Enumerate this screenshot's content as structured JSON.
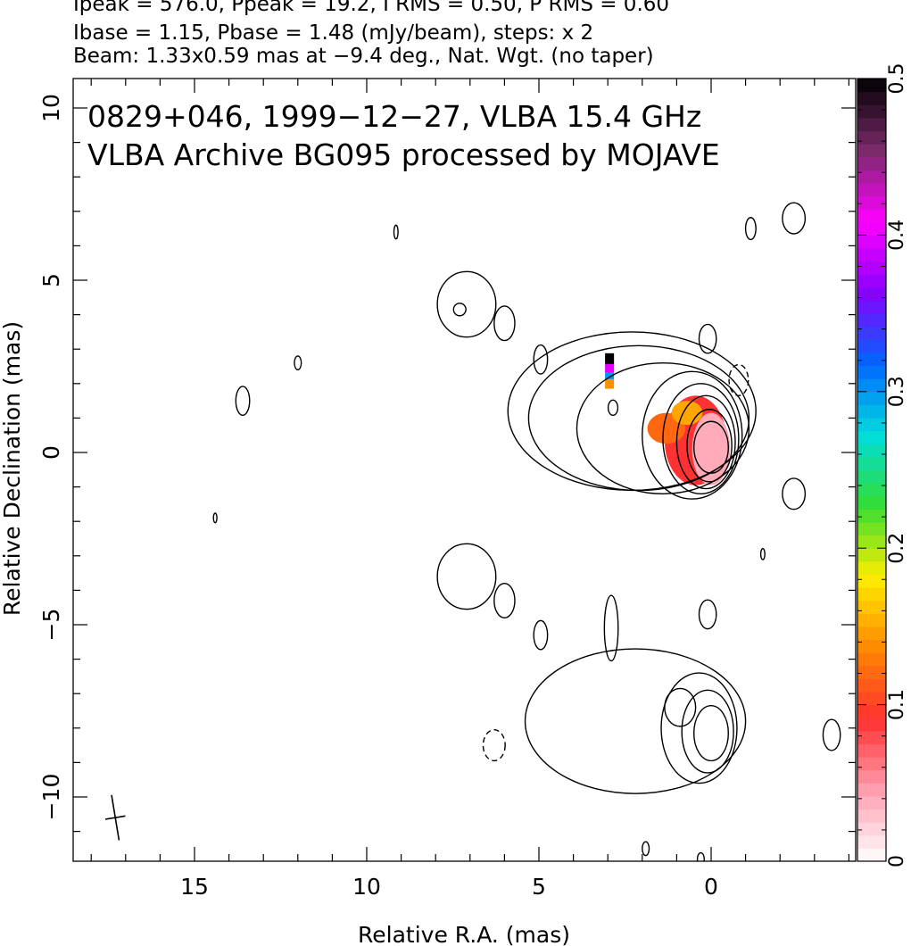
{
  "header": {
    "line1": "Ipeak = 576.0, Ppeak = 19.2, I RMS = 0.50, P RMS = 0.60",
    "line2": "Ibase = 1.15, Pbase = 1.48 (mJy/beam), steps: x 2",
    "line3": "Beam: 1.33x0.59 mas at −9.4 deg., Nat. Wgt. (no taper)"
  },
  "chart_data": {
    "type": "heatmap",
    "title_line1": "0829+046, 1999−12−27, VLBA 15.4 GHz",
    "title_line2": "VLBA Archive BG095 processed by MOJAVE",
    "xlabel": "Relative R.A. (mas)",
    "ylabel": "Relative Declination (mas)",
    "xlim": [
      18.5,
      -4.2
    ],
    "ylim": [
      -11.8,
      10.9
    ],
    "x_ticks": [
      15,
      10,
      5,
      0
    ],
    "x_tick_labels": [
      "15",
      "10",
      "5",
      "0"
    ],
    "y_ticks": [
      10,
      5,
      0,
      -5,
      -10
    ],
    "y_tick_labels": [
      "10",
      "5",
      "0",
      "−5",
      "−10"
    ],
    "colorbar": {
      "range": [
        0,
        0.5
      ],
      "ticks": [
        0,
        0.1,
        0.2,
        0.3,
        0.4,
        0.5
      ],
      "tick_labels": [
        "0",
        "0.1",
        "0.2",
        "0.3",
        "0.4",
        "0.5"
      ],
      "colors": [
        "#ffffff",
        "#ff9fb0",
        "#ff3030",
        "#ff8800",
        "#ffee00",
        "#33dd33",
        "#00dddd",
        "#0066ff",
        "#8800ff",
        "#ff00ff",
        "#7a2a6a",
        "#000000"
      ]
    },
    "total_intensity_contours": [
      {
        "x": 0.0,
        "y": 0.15,
        "rx": 0.5,
        "ry": 0.75
      },
      {
        "x": 0.05,
        "y": 0.2,
        "rx": 0.65,
        "ry": 1.05
      },
      {
        "x": 0.15,
        "y": 0.3,
        "rx": 0.85,
        "ry": 1.35
      },
      {
        "x": 0.3,
        "y": 0.4,
        "rx": 1.1,
        "ry": 1.6
      },
      {
        "x": 0.55,
        "y": 0.5,
        "rx": 1.45,
        "ry": 1.85
      },
      {
        "x": 1.4,
        "y": 0.7,
        "rx": 2.5,
        "ry": 1.9
      },
      {
        "x": 2.1,
        "y": 1.0,
        "rx": 3.2,
        "ry": 2.1
      },
      {
        "x": 2.3,
        "y": 1.2,
        "rx": 3.6,
        "ry": 2.3
      },
      {
        "x": 2.85,
        "y": 1.3,
        "rx": 0.14,
        "ry": 0.22
      },
      {
        "x": 7.1,
        "y": 4.3,
        "rx": 0.85,
        "ry": 0.95
      },
      {
        "x": 7.3,
        "y": 4.15,
        "rx": 0.18,
        "ry": 0.18
      },
      {
        "x": 6.0,
        "y": 3.75,
        "rx": 0.3,
        "ry": 0.5
      },
      {
        "x": 4.95,
        "y": 2.7,
        "rx": 0.2,
        "ry": 0.42
      },
      {
        "x": 0.1,
        "y": 3.3,
        "rx": 0.25,
        "ry": 0.42
      },
      {
        "x": -2.4,
        "y": 6.8,
        "rx": 0.33,
        "ry": 0.45
      },
      {
        "x": -1.15,
        "y": 6.5,
        "rx": 0.15,
        "ry": 0.32
      },
      {
        "x": 9.15,
        "y": 6.4,
        "rx": 0.06,
        "ry": 0.2
      },
      {
        "x": 12.0,
        "y": 2.6,
        "rx": 0.1,
        "ry": 0.2
      },
      {
        "x": 13.6,
        "y": 1.5,
        "rx": 0.2,
        "ry": 0.42
      },
      {
        "x": -2.4,
        "y": -1.2,
        "rx": 0.33,
        "ry": 0.45
      },
      {
        "x": 0.1,
        "y": -4.7,
        "rx": 0.25,
        "ry": 0.42
      },
      {
        "x": 7.1,
        "y": -3.6,
        "rx": 0.85,
        "ry": 0.95
      },
      {
        "x": 6.0,
        "y": -4.3,
        "rx": 0.3,
        "ry": 0.5
      },
      {
        "x": 4.95,
        "y": -5.3,
        "rx": 0.2,
        "ry": 0.42
      },
      {
        "x": 2.2,
        "y": -7.8,
        "rx": 3.2,
        "ry": 2.1
      },
      {
        "x": 0.35,
        "y": -8.0,
        "rx": 1.1,
        "ry": 1.6
      },
      {
        "x": 0.1,
        "y": -8.1,
        "rx": 0.75,
        "ry": 1.2
      },
      {
        "x": 0.0,
        "y": -8.15,
        "rx": 0.5,
        "ry": 0.8
      },
      {
        "x": 0.9,
        "y": -7.4,
        "rx": 0.45,
        "ry": 0.55
      },
      {
        "x": 2.9,
        "y": -5.1,
        "rx": 0.2,
        "ry": 0.95
      },
      {
        "x": -3.5,
        "y": -8.2,
        "rx": 0.25,
        "ry": 0.45
      },
      {
        "x": 14.4,
        "y": -1.9,
        "rx": 0.05,
        "ry": 0.14
      },
      {
        "x": -1.5,
        "y": -2.95,
        "rx": 0.06,
        "ry": 0.16
      },
      {
        "x": 1.9,
        "y": -11.5,
        "rx": 0.1,
        "ry": 0.2
      },
      {
        "x": 0.3,
        "y": -11.8,
        "rx": 0.1,
        "ry": 0.18
      }
    ],
    "negative_contours": [
      {
        "x": -0.8,
        "y": 2.1,
        "rx": 0.28,
        "ry": 0.45
      },
      {
        "x": 6.3,
        "y": -8.5,
        "rx": 0.32,
        "ry": 0.45
      }
    ],
    "polarization_overlay": [
      {
        "x": 0.0,
        "y": 0.1,
        "rx": 0.55,
        "ry": 1.05,
        "value": 0.04
      },
      {
        "x": 0.45,
        "y": 0.35,
        "rx": 0.9,
        "ry": 1.3,
        "value": 0.09
      },
      {
        "x": 1.3,
        "y": 0.7,
        "rx": 0.55,
        "ry": 0.45,
        "value": 0.12
      },
      {
        "x": 0.7,
        "y": 1.15,
        "rx": 0.45,
        "ry": 0.35,
        "value": 0.15
      },
      {
        "x": 2.95,
        "y": 2.0,
        "rx": 0.13,
        "ry": 0.15,
        "value": 0.14
      },
      {
        "x": 2.95,
        "y": 2.25,
        "rx": 0.13,
        "ry": 0.12,
        "value": 0.3
      },
      {
        "x": 2.95,
        "y": 2.45,
        "rx": 0.13,
        "ry": 0.12,
        "value": 0.4
      },
      {
        "x": 2.95,
        "y": 2.7,
        "rx": 0.13,
        "ry": 0.18,
        "value": 0.5
      }
    ],
    "beam": {
      "major_mas": 1.33,
      "minor_mas": 0.59,
      "pa_deg": -9.4
    }
  }
}
